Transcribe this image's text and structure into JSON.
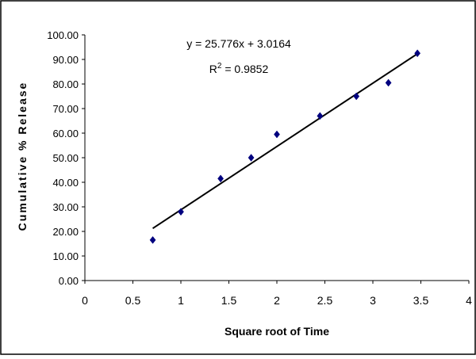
{
  "chart_data": {
    "type": "scatter",
    "title": "",
    "xlabel": "Square root of Time",
    "ylabel": "Cumulative % Release",
    "xlim": [
      0,
      4
    ],
    "ylim": [
      0,
      100
    ],
    "x_ticks": [
      "0",
      "0.5",
      "1",
      "1.5",
      "2",
      "2.5",
      "3",
      "3.5",
      "4"
    ],
    "y_ticks": [
      "0.00",
      "10.00",
      "20.00",
      "30.00",
      "40.00",
      "50.00",
      "60.00",
      "70.00",
      "80.00",
      "90.00",
      "100.00"
    ],
    "grid": false,
    "legend": "none",
    "series": [
      {
        "marker": "diamond",
        "color": "#00007f",
        "points": [
          {
            "x": 0.707,
            "y": 16.5
          },
          {
            "x": 1.0,
            "y": 28.0
          },
          {
            "x": 1.414,
            "y": 41.5
          },
          {
            "x": 1.732,
            "y": 50.0
          },
          {
            "x": 2.0,
            "y": 59.5
          },
          {
            "x": 2.449,
            "y": 67.0
          },
          {
            "x": 2.828,
            "y": 75.0
          },
          {
            "x": 3.162,
            "y": 80.5
          },
          {
            "x": 3.464,
            "y": 92.5
          }
        ]
      }
    ],
    "trendline": {
      "type": "linear",
      "slope": 25.776,
      "intercept": 3.0164,
      "x_range": [
        0.707,
        3.464
      ],
      "color": "#000000"
    },
    "annotations": {
      "equation": "y = 25.776x + 3.0164",
      "r2_prefix": "R",
      "r2_sup": "2",
      "r2_suffix": " = 0.9852"
    }
  }
}
